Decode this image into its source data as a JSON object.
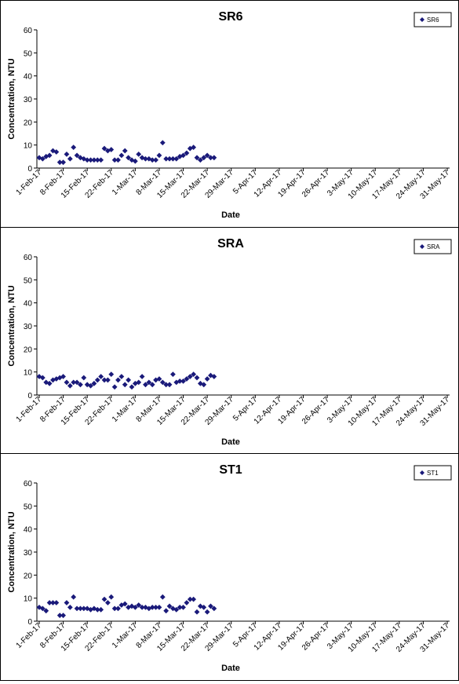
{
  "chart_data": [
    {
      "type": "scatter",
      "title": "SR6",
      "xlabel": "Date",
      "ylabel": "Concentration, NTU",
      "ylim": [
        0,
        60
      ],
      "yticks": [
        0,
        10,
        20,
        30,
        40,
        50,
        60
      ],
      "grid": false,
      "legend_position": "top-right",
      "marker_color": "#1a1a7a",
      "xticks": [
        "1-Feb-17",
        "8-Feb-17",
        "15-Feb-17",
        "22-Feb-17",
        "1-Mar-17",
        "8-Mar-17",
        "15-Mar-17",
        "22-Mar-17",
        "29-Mar-17",
        "5-Apr-17",
        "12-Apr-17",
        "19-Apr-17",
        "26-Apr-17",
        "3-May-17",
        "10-May-17",
        "17-May-17",
        "24-May-17",
        "31-May-17"
      ],
      "series": [
        {
          "name": "SR6",
          "points": [
            [
              "1-Feb-17",
              4.5
            ],
            [
              "2-Feb-17",
              4.0
            ],
            [
              "3-Feb-17",
              5.0
            ],
            [
              "4-Feb-17",
              5.5
            ],
            [
              "5-Feb-17",
              7.5
            ],
            [
              "6-Feb-17",
              7.0
            ],
            [
              "7-Feb-17",
              2.5
            ],
            [
              "8-Feb-17",
              2.5
            ],
            [
              "9-Feb-17",
              6.0
            ],
            [
              "10-Feb-17",
              4.0
            ],
            [
              "11-Feb-17",
              9.0
            ],
            [
              "12-Feb-17",
              5.5
            ],
            [
              "13-Feb-17",
              4.5
            ],
            [
              "14-Feb-17",
              4.0
            ],
            [
              "15-Feb-17",
              3.5
            ],
            [
              "16-Feb-17",
              3.5
            ],
            [
              "17-Feb-17",
              3.5
            ],
            [
              "18-Feb-17",
              3.5
            ],
            [
              "19-Feb-17",
              3.5
            ],
            [
              "20-Feb-17",
              8.5
            ],
            [
              "21-Feb-17",
              7.5
            ],
            [
              "22-Feb-17",
              8.0
            ],
            [
              "23-Feb-17",
              3.5
            ],
            [
              "24-Feb-17",
              3.5
            ],
            [
              "25-Feb-17",
              5.5
            ],
            [
              "26-Feb-17",
              7.5
            ],
            [
              "27-Feb-17",
              4.5
            ],
            [
              "28-Feb-17",
              3.5
            ],
            [
              "1-Mar-17",
              3.0
            ],
            [
              "2-Mar-17",
              6.0
            ],
            [
              "3-Mar-17",
              4.5
            ],
            [
              "4-Mar-17",
              4.0
            ],
            [
              "5-Mar-17",
              4.0
            ],
            [
              "6-Mar-17",
              3.5
            ],
            [
              "7-Mar-17",
              3.5
            ],
            [
              "8-Mar-17",
              5.5
            ],
            [
              "9-Mar-17",
              11.0
            ],
            [
              "10-Mar-17",
              4.0
            ],
            [
              "11-Mar-17",
              4.0
            ],
            [
              "12-Mar-17",
              4.0
            ],
            [
              "13-Mar-17",
              4.0
            ],
            [
              "14-Mar-17",
              5.0
            ],
            [
              "15-Mar-17",
              5.5
            ],
            [
              "16-Mar-17",
              6.5
            ],
            [
              "17-Mar-17",
              8.5
            ],
            [
              "18-Mar-17",
              9.0
            ],
            [
              "19-Mar-17",
              4.5
            ],
            [
              "20-Mar-17",
              3.5
            ],
            [
              "21-Mar-17",
              4.5
            ],
            [
              "22-Mar-17",
              5.5
            ],
            [
              "23-Mar-17",
              4.5
            ],
            [
              "24-Mar-17",
              4.5
            ]
          ]
        }
      ]
    },
    {
      "type": "scatter",
      "title": "SRA",
      "xlabel": "Date",
      "ylabel": "Concentration, NTU",
      "ylim": [
        0,
        60
      ],
      "yticks": [
        0,
        10,
        20,
        30,
        40,
        50,
        60
      ],
      "grid": false,
      "legend_position": "top-right",
      "marker_color": "#1a1a7a",
      "xticks": [
        "1-Feb-17",
        "8-Feb-17",
        "15-Feb-17",
        "22-Feb-17",
        "1-Mar-17",
        "8-Mar-17",
        "15-Mar-17",
        "22-Mar-17",
        "29-Mar-17",
        "5-Apr-17",
        "12-Apr-17",
        "19-Apr-17",
        "26-Apr-17",
        "3-May-17",
        "10-May-17",
        "17-May-17",
        "24-May-17",
        "31-May-17"
      ],
      "series": [
        {
          "name": "SRA",
          "points": [
            [
              "1-Feb-17",
              8.0
            ],
            [
              "2-Feb-17",
              7.5
            ],
            [
              "3-Feb-17",
              5.5
            ],
            [
              "4-Feb-17",
              5.0
            ],
            [
              "5-Feb-17",
              6.5
            ],
            [
              "6-Feb-17",
              7.0
            ],
            [
              "7-Feb-17",
              7.5
            ],
            [
              "8-Feb-17",
              8.0
            ],
            [
              "9-Feb-17",
              5.5
            ],
            [
              "10-Feb-17",
              4.0
            ],
            [
              "11-Feb-17",
              5.5
            ],
            [
              "12-Feb-17",
              5.5
            ],
            [
              "13-Feb-17",
              4.5
            ],
            [
              "14-Feb-17",
              7.5
            ],
            [
              "15-Feb-17",
              4.5
            ],
            [
              "16-Feb-17",
              4.0
            ],
            [
              "17-Feb-17",
              5.0
            ],
            [
              "18-Feb-17",
              6.5
            ],
            [
              "19-Feb-17",
              8.0
            ],
            [
              "20-Feb-17",
              6.5
            ],
            [
              "21-Feb-17",
              6.5
            ],
            [
              "22-Feb-17",
              9.0
            ],
            [
              "23-Feb-17",
              3.5
            ],
            [
              "24-Feb-17",
              6.5
            ],
            [
              "25-Feb-17",
              8.0
            ],
            [
              "26-Feb-17",
              4.5
            ],
            [
              "27-Feb-17",
              6.5
            ],
            [
              "28-Feb-17",
              3.5
            ],
            [
              "1-Mar-17",
              5.0
            ],
            [
              "2-Mar-17",
              5.5
            ],
            [
              "3-Mar-17",
              8.0
            ],
            [
              "4-Mar-17",
              4.5
            ],
            [
              "5-Mar-17",
              5.5
            ],
            [
              "6-Mar-17",
              4.5
            ],
            [
              "7-Mar-17",
              6.5
            ],
            [
              "8-Mar-17",
              7.0
            ],
            [
              "9-Mar-17",
              5.5
            ],
            [
              "10-Mar-17",
              4.5
            ],
            [
              "11-Mar-17",
              4.5
            ],
            [
              "12-Mar-17",
              9.0
            ],
            [
              "13-Mar-17",
              5.5
            ],
            [
              "14-Mar-17",
              6.0
            ],
            [
              "15-Mar-17",
              6.0
            ],
            [
              "16-Mar-17",
              7.0
            ],
            [
              "17-Mar-17",
              8.0
            ],
            [
              "18-Mar-17",
              9.0
            ],
            [
              "19-Mar-17",
              7.5
            ],
            [
              "20-Mar-17",
              5.0
            ],
            [
              "21-Mar-17",
              4.5
            ],
            [
              "22-Mar-17",
              7.0
            ],
            [
              "23-Mar-17",
              8.5
            ],
            [
              "24-Mar-17",
              8.0
            ]
          ]
        }
      ]
    },
    {
      "type": "scatter",
      "title": "ST1",
      "xlabel": "Date",
      "ylabel": "Concentration, NTU",
      "ylim": [
        0,
        60
      ],
      "yticks": [
        0,
        10,
        20,
        30,
        40,
        50,
        60
      ],
      "grid": false,
      "legend_position": "top-right",
      "marker_color": "#1a1a7a",
      "xticks": [
        "1-Feb-17",
        "8-Feb-17",
        "15-Feb-17",
        "22-Feb-17",
        "1-Mar-17",
        "8-Mar-17",
        "15-Mar-17",
        "22-Mar-17",
        "29-Mar-17",
        "5-Apr-17",
        "12-Apr-17",
        "19-Apr-17",
        "26-Apr-17",
        "3-May-17",
        "10-May-17",
        "17-May-17",
        "24-May-17",
        "31-May-17"
      ],
      "series": [
        {
          "name": "ST1",
          "points": [
            [
              "1-Feb-17",
              6.0
            ],
            [
              "2-Feb-17",
              5.5
            ],
            [
              "3-Feb-17",
              4.5
            ],
            [
              "4-Feb-17",
              8.0
            ],
            [
              "5-Feb-17",
              8.0
            ],
            [
              "6-Feb-17",
              8.0
            ],
            [
              "7-Feb-17",
              2.5
            ],
            [
              "8-Feb-17",
              2.5
            ],
            [
              "9-Feb-17",
              8.0
            ],
            [
              "10-Feb-17",
              6.0
            ],
            [
              "11-Feb-17",
              10.5
            ],
            [
              "12-Feb-17",
              5.5
            ],
            [
              "13-Feb-17",
              5.5
            ],
            [
              "14-Feb-17",
              5.5
            ],
            [
              "15-Feb-17",
              5.5
            ],
            [
              "16-Feb-17",
              5.0
            ],
            [
              "17-Feb-17",
              5.5
            ],
            [
              "18-Feb-17",
              5.0
            ],
            [
              "19-Feb-17",
              5.0
            ],
            [
              "20-Feb-17",
              9.5
            ],
            [
              "21-Feb-17",
              8.0
            ],
            [
              "22-Feb-17",
              10.5
            ],
            [
              "23-Feb-17",
              5.5
            ],
            [
              "24-Feb-17",
              5.5
            ],
            [
              "25-Feb-17",
              7.0
            ],
            [
              "26-Feb-17",
              7.5
            ],
            [
              "27-Feb-17",
              6.0
            ],
            [
              "28-Feb-17",
              6.5
            ],
            [
              "1-Mar-17",
              6.0
            ],
            [
              "2-Mar-17",
              7.0
            ],
            [
              "3-Mar-17",
              6.0
            ],
            [
              "4-Mar-17",
              6.0
            ],
            [
              "5-Mar-17",
              5.5
            ],
            [
              "6-Mar-17",
              6.0
            ],
            [
              "7-Mar-17",
              6.0
            ],
            [
              "8-Mar-17",
              6.0
            ],
            [
              "9-Mar-17",
              10.5
            ],
            [
              "10-Mar-17",
              4.5
            ],
            [
              "11-Mar-17",
              6.5
            ],
            [
              "12-Mar-17",
              5.5
            ],
            [
              "13-Mar-17",
              5.0
            ],
            [
              "14-Mar-17",
              6.0
            ],
            [
              "15-Mar-17",
              6.0
            ],
            [
              "16-Mar-17",
              8.0
            ],
            [
              "17-Mar-17",
              9.5
            ],
            [
              "18-Mar-17",
              9.5
            ],
            [
              "19-Mar-17",
              4.0
            ],
            [
              "20-Mar-17",
              6.5
            ],
            [
              "21-Mar-17",
              6.0
            ],
            [
              "22-Mar-17",
              4.0
            ],
            [
              "23-Mar-17",
              6.5
            ],
            [
              "24-Mar-17",
              5.5
            ]
          ]
        }
      ]
    }
  ]
}
